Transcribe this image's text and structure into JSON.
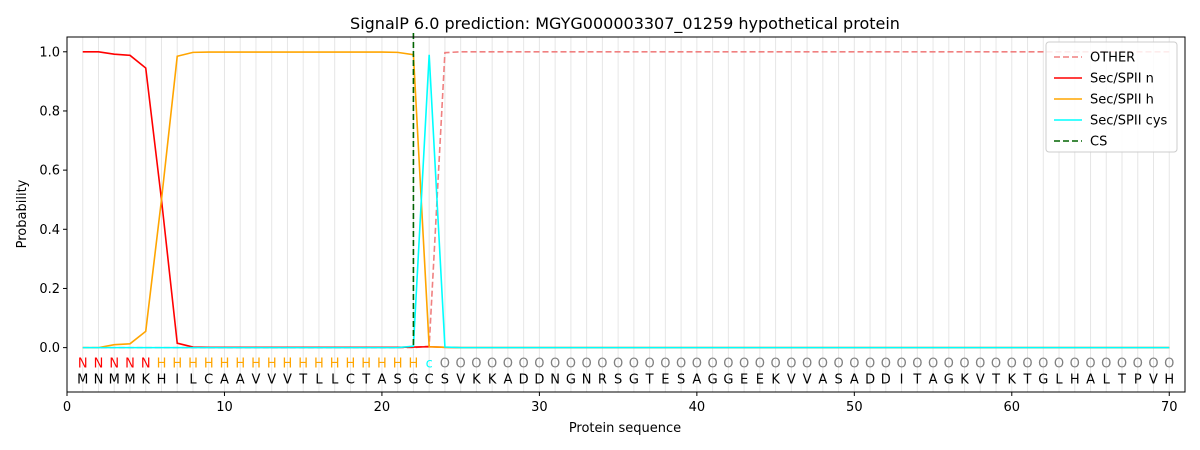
{
  "chart_data": {
    "type": "line",
    "title": "SignalP 6.0 prediction: MGYG000003307_01259 hypothetical protein",
    "xlabel": "Protein sequence",
    "ylabel": "Probability",
    "xlim": [
      0,
      71
    ],
    "ylim": [
      -0.15,
      1.05
    ],
    "x_ticks": [
      0,
      10,
      20,
      30,
      40,
      50,
      60,
      70
    ],
    "y_ticks": [
      0.0,
      0.2,
      0.4,
      0.6,
      0.8,
      1.0
    ],
    "x_tick_labels": [
      "0",
      "10",
      "20",
      "30",
      "40",
      "50",
      "60",
      "70"
    ],
    "y_tick_labels": [
      "0.0",
      "0.2",
      "0.4",
      "0.6",
      "0.8",
      "1.0"
    ],
    "legend_position": "top-right",
    "sequence": "MNMMKHILCAAVVVTLLCTASGCSVKKADDNGNRSGTESAGGEEKVVASADDITAGKVTKTGLHALTPVH",
    "labels": "NNNNNHHHHHHHHHHHHHHHHHCOOOOOOOOOOOOOOOOOOOOOOOOOOOOOOOOOOOOOOOOOOOOOOO",
    "label_colors": {
      "N": "#ff0000",
      "H": "#ffa500",
      "C": "#00ffff",
      "O": "#808080"
    },
    "cleavage_site": 22,
    "series": [
      {
        "name": "OTHER",
        "color": "#f08080",
        "dash": true,
        "values": [
          0,
          0,
          0,
          0,
          0,
          0,
          0,
          0,
          0,
          0,
          0,
          0,
          0,
          0,
          0,
          0,
          0,
          0,
          0,
          0,
          0,
          0,
          0.005,
          0.997,
          1,
          1,
          1,
          1,
          1,
          1,
          1,
          1,
          1,
          1,
          1,
          1,
          1,
          1,
          1,
          1,
          1,
          1,
          1,
          1,
          1,
          1,
          1,
          1,
          1,
          1,
          1,
          1,
          1,
          1,
          1,
          1,
          1,
          1,
          1,
          1,
          1,
          1,
          1,
          1,
          1,
          1,
          1,
          1,
          1,
          1
        ]
      },
      {
        "name": "Sec/SPII n",
        "color": "#ff0000",
        "dash": false,
        "values": [
          1,
          1,
          0.992,
          0.988,
          0.945,
          0.5,
          0.015,
          0.002,
          0.001,
          0.001,
          0.001,
          0.001,
          0.001,
          0.001,
          0.001,
          0.001,
          0.001,
          0.001,
          0.001,
          0.001,
          0.001,
          0.002,
          0.003,
          0.001,
          0,
          0,
          0,
          0,
          0,
          0,
          0,
          0,
          0,
          0,
          0,
          0,
          0,
          0,
          0,
          0,
          0,
          0,
          0,
          0,
          0,
          0,
          0,
          0,
          0,
          0,
          0,
          0,
          0,
          0,
          0,
          0,
          0,
          0,
          0,
          0,
          0,
          0,
          0,
          0,
          0,
          0,
          0,
          0,
          0,
          0
        ]
      },
      {
        "name": "Sec/SPII h",
        "color": "#ffa500",
        "dash": false,
        "values": [
          0,
          0,
          0.01,
          0.013,
          0.055,
          0.5,
          0.985,
          0.998,
          0.999,
          0.999,
          0.999,
          0.999,
          0.999,
          0.999,
          0.999,
          0.999,
          0.999,
          0.999,
          0.999,
          0.999,
          0.998,
          0.99,
          0.003,
          0.001,
          0,
          0,
          0,
          0,
          0,
          0,
          0,
          0,
          0,
          0,
          0,
          0,
          0,
          0,
          0,
          0,
          0,
          0,
          0,
          0,
          0,
          0,
          0,
          0,
          0,
          0,
          0,
          0,
          0,
          0,
          0,
          0,
          0,
          0,
          0,
          0,
          0,
          0,
          0,
          0,
          0,
          0,
          0,
          0,
          0,
          0
        ]
      },
      {
        "name": "Sec/SPII cys",
        "color": "#00ffff",
        "dash": false,
        "values": [
          0,
          0,
          0,
          0,
          0,
          0,
          0,
          0,
          0,
          0,
          0,
          0,
          0,
          0,
          0,
          0,
          0,
          0,
          0,
          0,
          0,
          0.005,
          0.99,
          0.002,
          0,
          0,
          0,
          0,
          0,
          0,
          0,
          0,
          0,
          0,
          0,
          0,
          0,
          0,
          0,
          0,
          0,
          0,
          0,
          0,
          0,
          0,
          0,
          0,
          0,
          0,
          0,
          0,
          0,
          0,
          0,
          0,
          0,
          0,
          0,
          0,
          0,
          0,
          0,
          0,
          0,
          0,
          0,
          0,
          0,
          0
        ]
      },
      {
        "name": "CS",
        "color": "#006400",
        "dash": true,
        "vertical_at": 22
      }
    ]
  }
}
